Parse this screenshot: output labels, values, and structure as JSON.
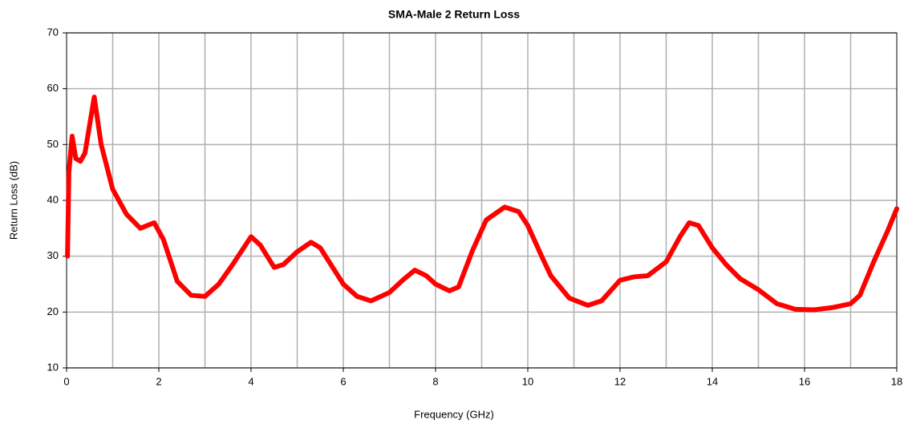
{
  "chart_data": {
    "type": "line",
    "title": "SMA-Male 2 Return Loss",
    "xlabel": "Frequency (GHz)",
    "ylabel": "Return Loss (dB)",
    "x": [
      0.02,
      0.05,
      0.12,
      0.2,
      0.3,
      0.4,
      0.6,
      0.75,
      1.0,
      1.3,
      1.6,
      1.9,
      2.1,
      2.4,
      2.7,
      3.0,
      3.3,
      3.6,
      4.0,
      4.2,
      4.5,
      4.7,
      5.0,
      5.3,
      5.5,
      6.0,
      6.3,
      6.6,
      7.0,
      7.3,
      7.55,
      7.8,
      8.0,
      8.3,
      8.5,
      8.8,
      9.1,
      9.5,
      9.8,
      10.0,
      10.3,
      10.5,
      10.9,
      11.3,
      11.6,
      12.0,
      12.3,
      12.6,
      13.0,
      13.3,
      13.5,
      13.7,
      14.0,
      14.3,
      14.6,
      15.0,
      15.4,
      15.8,
      16.2,
      16.6,
      17.0,
      17.2,
      17.5,
      17.8,
      18.0
    ],
    "series": [
      {
        "name": "Return Loss",
        "color": "#ff0000",
        "values": [
          30,
          45,
          51.5,
          47.5,
          47,
          48.5,
          58.5,
          50,
          42,
          37.5,
          35,
          36,
          33,
          25.5,
          23,
          22.8,
          25,
          28.5,
          33.5,
          32,
          28,
          28.5,
          30.8,
          32.5,
          31.5,
          25,
          22.8,
          22,
          23.5,
          25.8,
          27.5,
          26.5,
          25,
          23.8,
          24.5,
          31,
          36.5,
          38.8,
          38,
          35.5,
          30,
          26.5,
          22.5,
          21.2,
          22,
          25.7,
          26.3,
          26.5,
          29,
          33.5,
          36,
          35.5,
          31.5,
          28.5,
          26,
          24,
          21.5,
          20.5,
          20.4,
          20.8,
          21.5,
          23,
          29,
          34.5,
          38.5
        ]
      }
    ],
    "xlim": [
      0,
      18
    ],
    "xticks": [
      0,
      2,
      4,
      6,
      8,
      10,
      12,
      14,
      16,
      18
    ],
    "xgrid": [
      1,
      2,
      3,
      4,
      5,
      6,
      7,
      8,
      9,
      10,
      11,
      12,
      13,
      14,
      15,
      16,
      17
    ],
    "ylim": [
      10,
      70
    ],
    "yticks": [
      10,
      20,
      30,
      40,
      50,
      60,
      70
    ],
    "grid": true
  }
}
